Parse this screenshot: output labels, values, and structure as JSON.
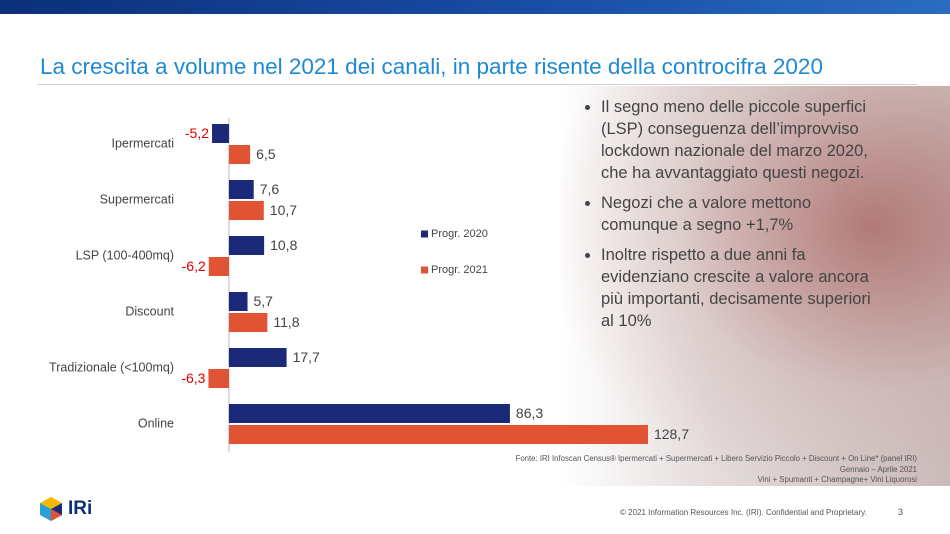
{
  "title": "La crescita a volume nel 2021 dei canali, in parte risente della controcifra 2020",
  "bullets": [
    "Il segno meno delle piccole superfici (LSP) conseguenza dell’improvviso lockdown nazionale del marzo 2020, che ha avvantaggiato questi negozi.",
    "Negozi che a valore mettono comunque a segno +1,7%",
    "Inoltre rispetto a due anni fa evidenziano crescite a valore ancora più importanti, decisamente superiori al 10%"
  ],
  "source": [
    "Fonte: IRI Infoscan Census® Ipermercati + Supermercati + Libero Servizio Piccolo + Discount + On Line* (panel IRI)",
    "Gennaio – Aprile 2021",
    "Vini + Spumanti + Champagne+ Vini Liquorosi"
  ],
  "copyright": "© 2021 Information Resources Inc. (IRI). Confidential and Proprietary.",
  "page_number": "3",
  "logo_text": "IRi",
  "chart_data": {
    "type": "hbar",
    "categories": [
      "Ipermercati",
      "Supermercati",
      "LSP (100-400mq)",
      "Discount",
      "Tradizionale (<100mq)",
      "Online"
    ],
    "series": [
      {
        "name": "Progr. 2020",
        "color": "#1b2a78",
        "values": [
          -5.2,
          7.6,
          10.8,
          5.7,
          17.7,
          86.3
        ],
        "value_labels": [
          "-5,2",
          "7,6",
          "10,8",
          "5,7",
          "17,7",
          "86,3"
        ]
      },
      {
        "name": "Progr. 2021",
        "color": "#e05433",
        "values": [
          6.5,
          10.7,
          -6.2,
          11.8,
          -6.3,
          128.7
        ],
        "value_labels": [
          "6,5",
          "10,7",
          "-6,2",
          "11,8",
          "-6,3",
          "128,7"
        ]
      }
    ],
    "xlim": [
      -10,
      130
    ],
    "negative_label_color": "#e00000",
    "label_color": "#444444"
  }
}
